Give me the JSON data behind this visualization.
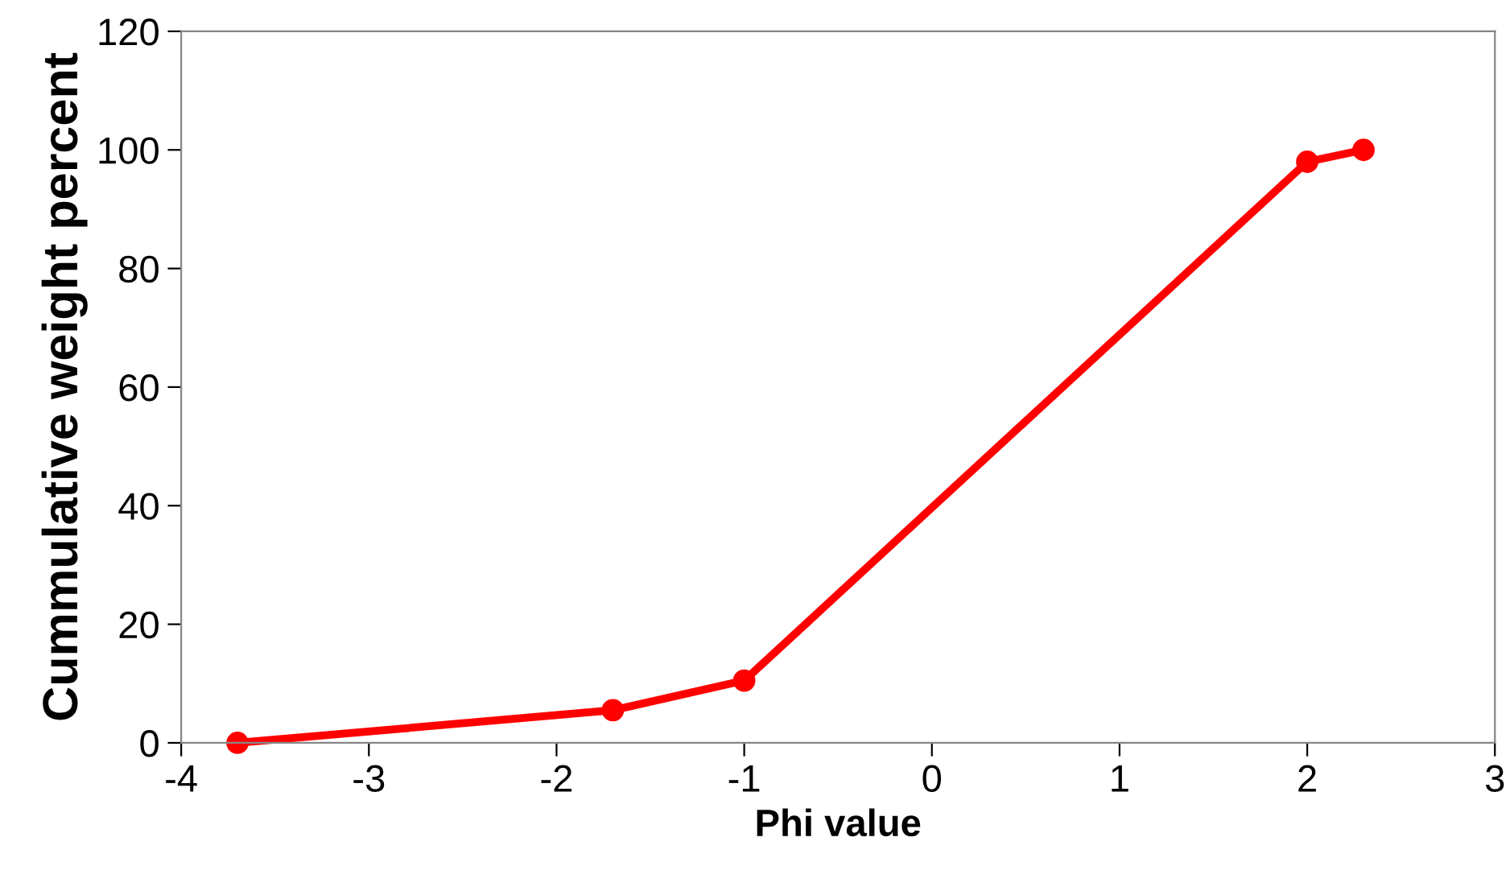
{
  "chart_data": {
    "type": "line",
    "xlabel": "Phi value",
    "ylabel": "Cummulative weight percent",
    "series": [
      {
        "color": "#ff0000",
        "x": [
          -3.7,
          -1.7,
          -1,
          2,
          2.3
        ],
        "values": [
          0,
          5.5,
          10.5,
          98,
          100
        ]
      }
    ],
    "xlim": [
      -4,
      3
    ],
    "xticks": [
      -4,
      -3,
      -2,
      -1,
      0,
      1,
      2,
      3
    ],
    "ylim": [
      0,
      120
    ],
    "yticks": [
      0,
      20,
      40,
      60,
      80,
      100,
      120
    ],
    "grid": false,
    "legend": false,
    "marker": "circle",
    "line_style": "solid"
  }
}
